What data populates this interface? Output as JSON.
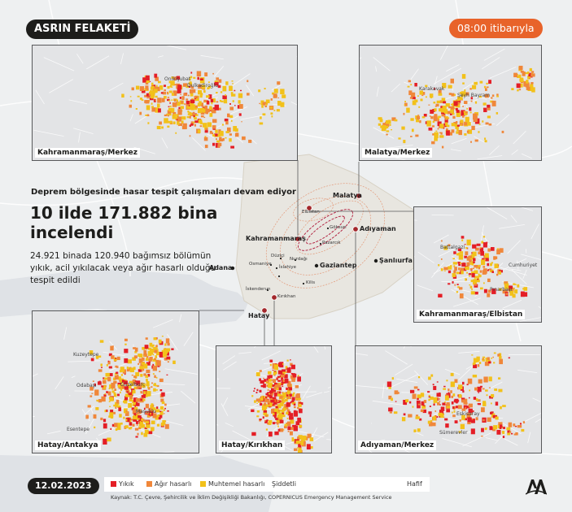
{
  "header": {
    "title": "ASRIN FELAKETİ",
    "time": "08:00 itibarıyla"
  },
  "date": "12.02.2023",
  "headline": {
    "subtitle": "Deprem bölgesinde hasar tespit çalışmaları devam ediyor",
    "main": "10 ilde 171.882 bina incelendi",
    "description": "24.921 binada 120.940 bağımsız bölümün yıkık, acil yıkılacak veya ağır hasarlı olduğu tespit edildi"
  },
  "insets": {
    "kahramanmaras_merkez": {
      "label": "Kahramanmaraş/Merkez",
      "places": [
        "Onikişubat",
        "Dulkadiroğlu"
      ]
    },
    "malatya_merkez": {
      "label": "Malatya/Merkez",
      "places": [
        "Karakavak",
        "Şeyh Bayram"
      ]
    },
    "elbistan": {
      "label": "Kahramanmaraş/Elbistan",
      "places": [
        "Battalgazi",
        "Cumhuriyet",
        "Pınarbaşı"
      ]
    },
    "antakya": {
      "label": "Hatay/Antakya",
      "places": [
        "Kuzeytepe",
        "Odabaşı",
        "Güzelburç",
        "Maşuklu",
        "Esentepe"
      ]
    },
    "kirikhan": {
      "label": "Hatay/Kırıkhan",
      "places": []
    },
    "adiyaman": {
      "label": "Adıyaman/Merkez",
      "places": [
        "Eskisaray",
        "Sümerevler"
      ]
    }
  },
  "map": {
    "cities": [
      "Malatya",
      "Kahramanmaraş",
      "Adıyaman",
      "Gaziantep",
      "Şanlıurfa",
      "Adana",
      "Hatay"
    ],
    "towns": [
      "Elbistan",
      "Göksun",
      "Pazarcık",
      "Nurdağı",
      "Düziçi",
      "Osmaniye",
      "İslahiye",
      "Kilis",
      "İskenderun",
      "Kırıkhan"
    ]
  },
  "legend": {
    "items": [
      {
        "label": "Yıkık",
        "color": "#e41e26"
      },
      {
        "label": "Ağır hasarlı",
        "color": "#f0873a"
      },
      {
        "label": "Muhtemel hasarlı",
        "color": "#f2c11a"
      }
    ],
    "scale_low": "Şiddetli",
    "scale_high": "Hafif"
  },
  "source": "Kaynak: T.C. Çevre, Şehircilik ve İklim Değişikliği Bakanlığı, COPERNICUS Emergency Management Service",
  "colors": {
    "destroyed": "#e41e26",
    "heavy": "#f0873a",
    "possible": "#f2c11a",
    "accent": "#e8632a",
    "dark": "#1d1d1b"
  }
}
